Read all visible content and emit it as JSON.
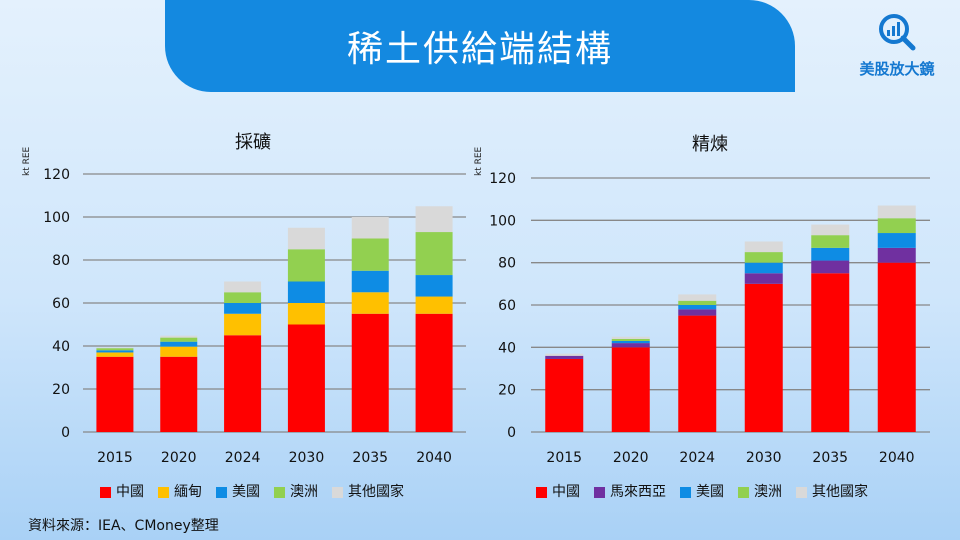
{
  "header": {
    "title": "稀土供給端結構",
    "logo_text": "美股放大鏡"
  },
  "source": "資料來源：IEA、CMoney整理",
  "colors": {
    "中國": "#ff0000",
    "緬甸": "#ffc000",
    "美國": "#0e8ce4",
    "澳洲": "#92d050",
    "其他國家": "#d9d9d9",
    "馬來西亞": "#7030a0"
  },
  "chart_data": [
    {
      "type": "bar",
      "stacked": true,
      "title": "採礦",
      "ylabel": "kt REE",
      "ylim": [
        0,
        120
      ],
      "yticks": [
        0,
        20,
        40,
        60,
        80,
        100,
        120
      ],
      "grid": true,
      "legend": "bottom",
      "categories": [
        "2015",
        "2020",
        "2024",
        "2030",
        "2035",
        "2040"
      ],
      "series": [
        {
          "name": "中國",
          "values": [
            35,
            35,
            45,
            50,
            55,
            55
          ]
        },
        {
          "name": "緬甸",
          "values": [
            2,
            4.7,
            10,
            10,
            10,
            8
          ]
        },
        {
          "name": "美國",
          "values": [
            1,
            2.3,
            5,
            10,
            10,
            10
          ]
        },
        {
          "name": "澳洲",
          "values": [
            1,
            1.9,
            5,
            15,
            15,
            20
          ]
        },
        {
          "name": "其他國家",
          "values": [
            0.3,
            0.9,
            5,
            10,
            10,
            12
          ]
        }
      ]
    },
    {
      "type": "bar",
      "stacked": true,
      "title": "精煉",
      "ylabel": "kt REE",
      "ylim": [
        0,
        120
      ],
      "yticks": [
        0,
        20,
        40,
        60,
        80,
        100,
        120
      ],
      "grid": true,
      "legend": "bottom",
      "categories": [
        "2015",
        "2020",
        "2024",
        "2030",
        "2035",
        "2040"
      ],
      "series": [
        {
          "name": "中國",
          "values": [
            34.5,
            40,
            55,
            70,
            75,
            80
          ]
        },
        {
          "name": "馬來西亞",
          "values": [
            1.5,
            2,
            3,
            5,
            6,
            7
          ]
        },
        {
          "name": "美國",
          "values": [
            0,
            1,
            2,
            5,
            6,
            7
          ]
        },
        {
          "name": "澳洲",
          "values": [
            0,
            1,
            2,
            5,
            6,
            7
          ]
        },
        {
          "name": "其他國家",
          "values": [
            1,
            1,
            3,
            5,
            5,
            6
          ]
        }
      ]
    }
  ]
}
